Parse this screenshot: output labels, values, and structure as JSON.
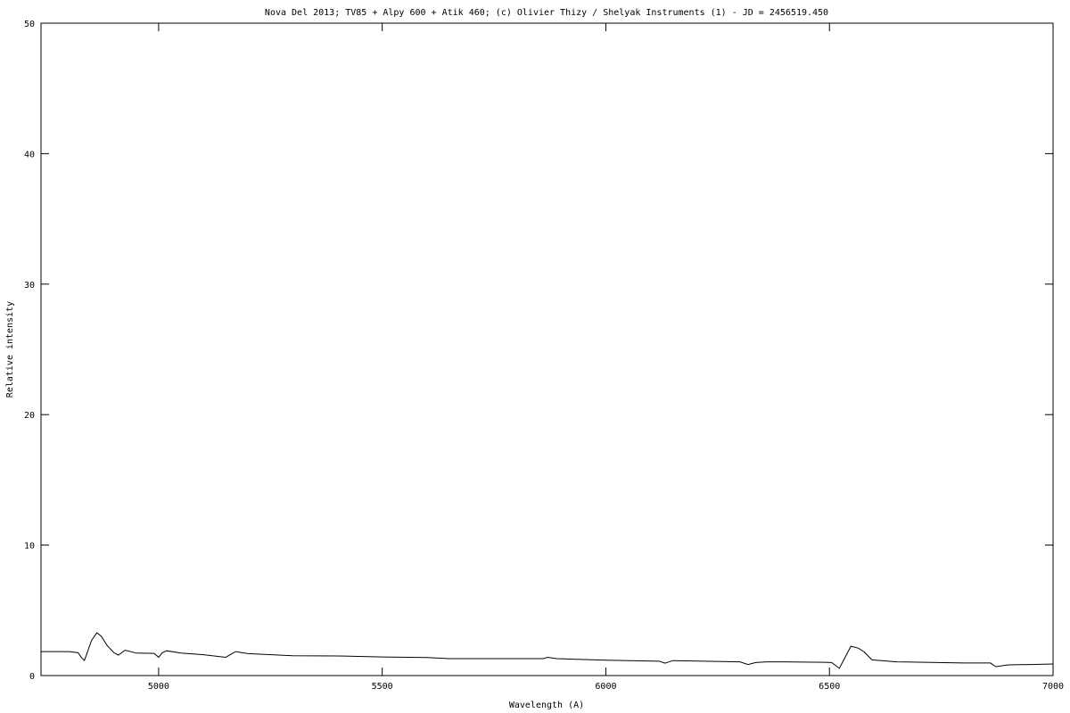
{
  "chart_data": {
    "type": "line",
    "title": "Nova Del 2013; TV85 + Alpy 600 + Atik 460; (c) Olivier Thizy / Shelyak Instruments (1) - JD = 2456519.450",
    "xlabel": "Wavelength (A)",
    "ylabel": "Relative intensity",
    "xlim": [
      4737,
      7000
    ],
    "ylim": [
      0,
      50
    ],
    "xticks": [
      5000,
      5500,
      6000,
      6500,
      7000
    ],
    "yticks": [
      0,
      10,
      20,
      30,
      40,
      50
    ],
    "grid": false,
    "line_color": "#000000",
    "series": [
      {
        "x": [
          4737,
          4800,
          4820,
          4828,
          4834,
          4850,
          4862,
          4872,
          4885,
          4900,
          4910,
          4925,
          4950,
          4990,
          5000,
          5008,
          5018,
          5050,
          5100,
          5150,
          5160,
          5172,
          5200,
          5300,
          5400,
          5500,
          5600,
          5650,
          5700,
          5860,
          5870,
          5890,
          6000,
          6120,
          6132,
          6150,
          6300,
          6318,
          6335,
          6360,
          6400,
          6490,
          6505,
          6522,
          6535,
          6548,
          6565,
          6578,
          6595,
          6650,
          6800,
          6860,
          6872,
          6900,
          6950,
          7000
        ],
        "y": [
          1.84,
          1.84,
          1.75,
          1.35,
          1.16,
          2.7,
          3.28,
          3.0,
          2.3,
          1.75,
          1.57,
          1.95,
          1.72,
          1.7,
          1.4,
          1.75,
          1.9,
          1.72,
          1.6,
          1.4,
          1.6,
          1.84,
          1.68,
          1.52,
          1.5,
          1.43,
          1.38,
          1.3,
          1.3,
          1.3,
          1.4,
          1.3,
          1.18,
          1.1,
          0.95,
          1.15,
          1.05,
          0.85,
          1.0,
          1.05,
          1.05,
          1.02,
          1.0,
          0.55,
          1.4,
          2.25,
          2.1,
          1.8,
          1.2,
          1.05,
          0.96,
          0.96,
          0.68,
          0.82,
          0.85,
          0.89
        ]
      }
    ]
  }
}
